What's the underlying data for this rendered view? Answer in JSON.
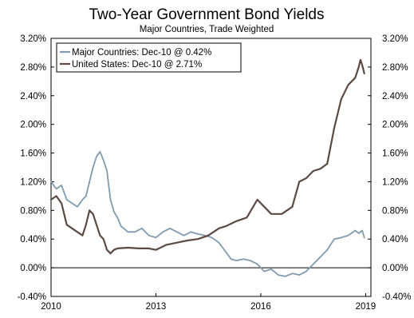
{
  "chart_data": {
    "type": "line",
    "title": "Two-Year Government Bond Yields",
    "subtitle": "Major Countries, Trade Weighted",
    "xlim": [
      2010.0,
      2019.15
    ],
    "ylim": [
      -0.4,
      3.2
    ],
    "x_ticks": [
      2010,
      2013,
      2016,
      2019
    ],
    "x_tick_labels": [
      "2010",
      "2013",
      "2016",
      "2019"
    ],
    "y_ticks": [
      -0.4,
      0.0,
      0.4,
      0.8,
      1.2,
      1.6,
      2.0,
      2.4,
      2.8,
      3.2
    ],
    "y_tick_labels": [
      "-0.40%",
      "0.00%",
      "0.40%",
      "0.80%",
      "1.20%",
      "1.60%",
      "2.00%",
      "2.40%",
      "2.80%",
      "3.20%"
    ],
    "zero_line": true,
    "legend_position": "top-left",
    "series": [
      {
        "name": "Major Countries: Dec-10 @ 0.42%",
        "color": "#7F9BAD",
        "x": [
          2010.0,
          2010.15,
          2010.3,
          2010.45,
          2010.6,
          2010.75,
          2010.9,
          2011.0,
          2011.1,
          2011.2,
          2011.3,
          2011.4,
          2011.5,
          2011.6,
          2011.7,
          2011.8,
          2011.9,
          2012.0,
          2012.2,
          2012.4,
          2012.6,
          2012.8,
          2013.0,
          2013.2,
          2013.4,
          2013.6,
          2013.8,
          2014.0,
          2014.2,
          2014.4,
          2014.6,
          2014.8,
          2015.0,
          2015.15,
          2015.3,
          2015.5,
          2015.7,
          2015.9,
          2016.1,
          2016.3,
          2016.5,
          2016.7,
          2016.9,
          2017.1,
          2017.3,
          2017.5,
          2017.7,
          2017.9,
          2018.1,
          2018.3,
          2018.5,
          2018.7,
          2018.8,
          2018.9,
          2018.96
        ],
        "y": [
          1.2,
          1.1,
          1.15,
          0.95,
          0.9,
          0.85,
          0.95,
          1.0,
          1.2,
          1.4,
          1.55,
          1.62,
          1.5,
          1.35,
          0.95,
          0.78,
          0.7,
          0.58,
          0.5,
          0.5,
          0.55,
          0.45,
          0.42,
          0.5,
          0.55,
          0.5,
          0.45,
          0.5,
          0.47,
          0.45,
          0.42,
          0.35,
          0.22,
          0.12,
          0.1,
          0.12,
          0.1,
          0.05,
          -0.05,
          -0.02,
          -0.1,
          -0.12,
          -0.08,
          -0.1,
          -0.05,
          0.05,
          0.15,
          0.25,
          0.4,
          0.42,
          0.45,
          0.52,
          0.48,
          0.52,
          0.42
        ]
      },
      {
        "name": "United States: Dec-10 @ 2.71%",
        "color": "#5C4A42",
        "x": [
          2010.0,
          2010.15,
          2010.3,
          2010.45,
          2010.6,
          2010.75,
          2010.9,
          2011.0,
          2011.1,
          2011.2,
          2011.3,
          2011.4,
          2011.5,
          2011.6,
          2011.7,
          2011.8,
          2011.9,
          2012.2,
          2012.5,
          2012.8,
          2013.0,
          2013.3,
          2013.6,
          2013.9,
          2014.2,
          2014.5,
          2014.8,
          2015.0,
          2015.3,
          2015.6,
          2015.9,
          2016.1,
          2016.3,
          2016.6,
          2016.9,
          2017.1,
          2017.3,
          2017.5,
          2017.7,
          2017.9,
          2018.1,
          2018.3,
          2018.5,
          2018.7,
          2018.8,
          2018.85,
          2018.9,
          2018.96
        ],
        "y": [
          0.95,
          1.0,
          0.9,
          0.6,
          0.55,
          0.5,
          0.45,
          0.6,
          0.8,
          0.75,
          0.6,
          0.45,
          0.4,
          0.25,
          0.2,
          0.25,
          0.27,
          0.28,
          0.27,
          0.27,
          0.25,
          0.32,
          0.35,
          0.38,
          0.4,
          0.45,
          0.55,
          0.58,
          0.65,
          0.7,
          0.95,
          0.85,
          0.75,
          0.75,
          0.85,
          1.2,
          1.25,
          1.35,
          1.38,
          1.45,
          1.95,
          2.35,
          2.55,
          2.65,
          2.8,
          2.9,
          2.83,
          2.71
        ]
      }
    ]
  }
}
